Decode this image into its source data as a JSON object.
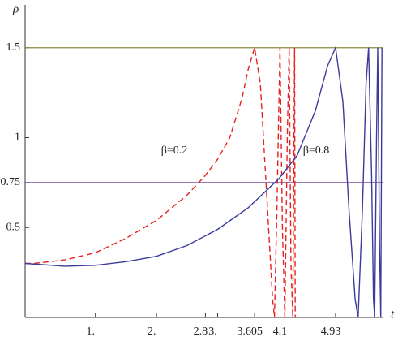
{
  "chart_data": {
    "type": "line",
    "x_label": "t",
    "y_label": "ρ",
    "annotations": [
      "β=0.2",
      "β=0.8"
    ],
    "xlim": [
      -0.15,
      5.7
    ],
    "ylim": [
      0,
      1.72
    ],
    "xticks": [
      {
        "value": 1,
        "label": "1."
      },
      {
        "value": 2,
        "label": "2."
      },
      2.8,
      {
        "value": 3,
        "label": "3."
      },
      3.605,
      4.1,
      4.93
    ],
    "yticks": [
      0.5,
      0.75,
      1,
      1.5
    ],
    "reference_lines": [
      {
        "value": 1.5,
        "color": "#8b8b3a"
      },
      {
        "value": 0.75,
        "color": "#7b4a9a"
      }
    ],
    "series": [
      {
        "name": "β=0.2",
        "color": "#e8211f",
        "dashed": true,
        "x": [
          -0.15,
          0,
          0.5,
          1,
          1.5,
          2,
          2.5,
          2.8,
          3,
          3.2,
          3.4,
          3.5,
          3.605,
          3.7,
          3.8,
          3.9,
          3.93,
          3.97,
          4.02,
          4.06,
          4.1,
          4.14,
          4.17,
          4.2,
          4.23,
          4.26,
          4.27
        ],
        "values": [
          0.3,
          0.3,
          0.32,
          0.36,
          0.44,
          0.54,
          0.68,
          0.79,
          0.88,
          1.0,
          1.22,
          1.38,
          1.5,
          1.3,
          0.7,
          0.1,
          0,
          0.6,
          1.5,
          0.5,
          0,
          1.0,
          1.5,
          0.3,
          0,
          1.5,
          0
        ]
      },
      {
        "name": "β=0.8",
        "color": "#3b3b9b",
        "dashed": false,
        "x": [
          -0.15,
          0.5,
          1,
          1.5,
          2,
          2.5,
          3,
          3.5,
          4,
          4.3,
          4.6,
          4.8,
          4.93,
          5.05,
          5.15,
          5.25,
          5.3,
          5.37,
          5.43,
          5.47,
          5.52,
          5.55,
          5.57,
          5.6,
          5.62,
          5.65,
          5.67,
          5.69
        ],
        "values": [
          0.3,
          0.285,
          0.29,
          0.31,
          0.34,
          0.4,
          0.49,
          0.61,
          0.77,
          0.9,
          1.15,
          1.4,
          1.5,
          1.2,
          0.6,
          0.1,
          0,
          0.6,
          1.3,
          1.5,
          0.8,
          0.1,
          0,
          1.0,
          1.5,
          0.4,
          0,
          1.5
        ]
      }
    ]
  }
}
